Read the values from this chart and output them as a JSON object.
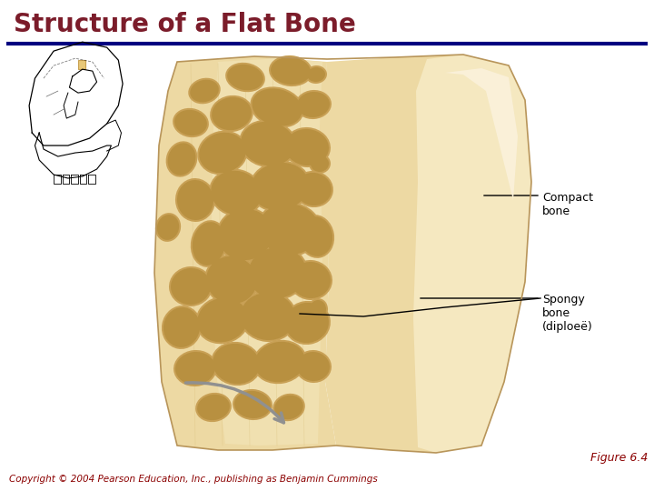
{
  "title": "Structure of a Flat Bone",
  "title_color": "#7B1C2A",
  "title_fontsize": 20,
  "title_fontstyle": "bold",
  "divider_color": "#000080",
  "divider_linewidth": 3,
  "background_color": "#ffffff",
  "copyright_text": "Copyright © 2004 Pearson Education, Inc., publishing as Benjamin Cummings",
  "copyright_color": "#8B0000",
  "copyright_fontsize": 7.5,
  "figure_label": "Figure 6.4",
  "figure_label_color": "#8B0000",
  "figure_label_fontsize": 9,
  "label_compact_bone": "Compact\nbone",
  "label_spongy_bone": "Spongy\nbone\n(diploeë)",
  "label_fontsize": 9,
  "label_color": "#000000",
  "bone_light": "#F0DFB0",
  "bone_mid": "#E8CF90",
  "bone_dark": "#D4B870",
  "bone_spongy_bg": "#EDD9A0",
  "compact_color": "#E8CC8A",
  "compact_edge": "#C8A050",
  "hole_fill": "#D4B060",
  "hole_edge": "#B89040",
  "arrow_color": "#909090"
}
